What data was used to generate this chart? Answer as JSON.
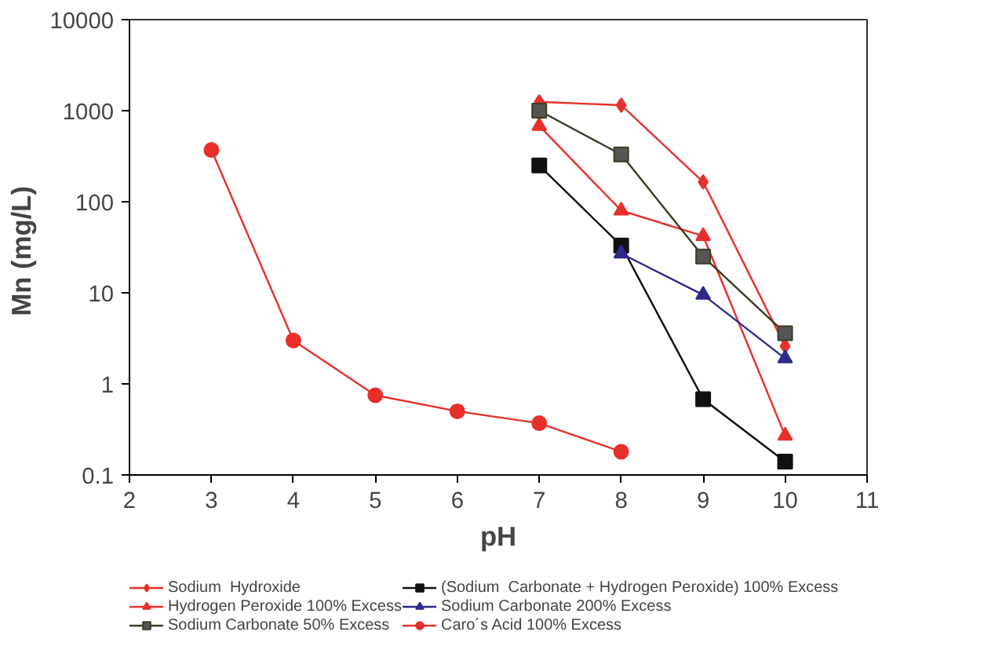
{
  "chart_data": {
    "type": "line",
    "xlabel": "pH",
    "ylabel": "Mn  (mg/L)",
    "log": "y",
    "xlim": [
      2,
      11
    ],
    "xticks": [
      2,
      3,
      4,
      5,
      6,
      7,
      8,
      9,
      10,
      11
    ],
    "ylim": [
      0.1,
      10000
    ],
    "yticks": [
      0.1,
      1,
      10,
      100,
      1000,
      10000
    ],
    "grid": false,
    "legend": "bottom",
    "line_style": "solid",
    "series": [
      {
        "name": "Sodium  Hydroxide",
        "color": "#e8302a",
        "marker": "diamond",
        "x": [
          7,
          8,
          9,
          10
        ],
        "values": [
          1250,
          1150,
          165,
          2.6
        ]
      },
      {
        "name": "Hydrogen Peroxide 100% Excess",
        "color": "#e8302a",
        "marker": "triangle",
        "x": [
          7,
          8,
          9,
          10
        ],
        "values": [
          680,
          80,
          42,
          0.27
        ]
      },
      {
        "name": "Sodium Carbonate 50% Excess",
        "color": "#3c3c24",
        "marker": "square",
        "x": [
          7,
          8,
          9,
          10
        ],
        "values": [
          1000,
          330,
          25,
          3.6
        ]
      },
      {
        "name": "(Sodium  Carbonate + Hydrogen Peroxide) 100% Excess",
        "color": "#111111",
        "marker": "square",
        "x": [
          7,
          8,
          9,
          10
        ],
        "values": [
          250,
          33,
          0.68,
          0.14
        ]
      },
      {
        "name": "Sodium Carbonate 200% Excess",
        "color": "#2e2a8c",
        "marker": "triangle",
        "x": [
          8,
          9,
          10
        ],
        "values": [
          27,
          9.5,
          1.9
        ]
      },
      {
        "name": "Caro´s Acid 100% Excess",
        "color": "#e8302a",
        "marker": "circle",
        "x": [
          3,
          4,
          5,
          6,
          7,
          8
        ],
        "values": [
          370,
          3.0,
          0.75,
          0.5,
          0.37,
          0.18
        ]
      }
    ]
  }
}
